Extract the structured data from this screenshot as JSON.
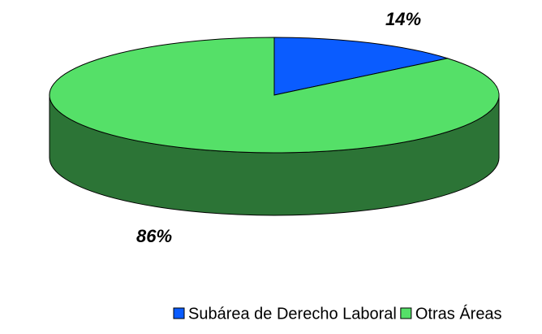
{
  "chart_data": {
    "type": "pie3d",
    "categories": [
      "Subárea de Derecho Laboral",
      "Otras Áreas"
    ],
    "values": [
      14,
      86
    ],
    "value_labels": [
      "14%",
      "86%"
    ],
    "colors": [
      "#0a5cff",
      "#55e068"
    ],
    "legend": "bottom"
  }
}
